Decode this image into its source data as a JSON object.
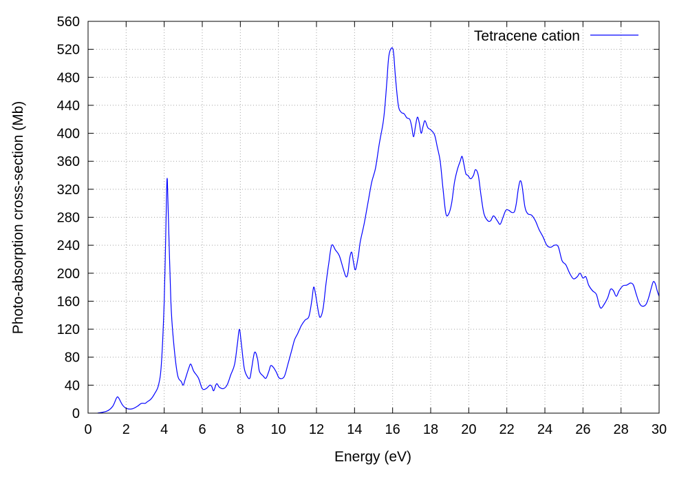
{
  "chart_data": {
    "type": "line",
    "xlabel": "Energy (eV)",
    "ylabel": "Photo-absorption cross-section (Mb)",
    "xlim": [
      0,
      30
    ],
    "ylim": [
      0,
      560
    ],
    "x_ticks": [
      "0",
      "2",
      "4",
      "6",
      "8",
      "10",
      "12",
      "14",
      "16",
      "18",
      "20",
      "22",
      "24",
      "26",
      "28",
      "30"
    ],
    "y_ticks": [
      "0",
      "40",
      "80",
      "120",
      "160",
      "200",
      "240",
      "280",
      "320",
      "360",
      "400",
      "440",
      "480",
      "520",
      "560"
    ],
    "grid": true,
    "legend_position": "top-right",
    "series": [
      {
        "name": "Tetracene cation",
        "color": "#0000ff",
        "points": [
          [
            0.5,
            0
          ],
          [
            1.0,
            3
          ],
          [
            1.3,
            10
          ],
          [
            1.5,
            22
          ],
          [
            1.6,
            22
          ],
          [
            1.8,
            12
          ],
          [
            2.0,
            7
          ],
          [
            2.3,
            6
          ],
          [
            2.6,
            10
          ],
          [
            2.8,
            14
          ],
          [
            3.0,
            14
          ],
          [
            3.1,
            16
          ],
          [
            3.3,
            20
          ],
          [
            3.5,
            28
          ],
          [
            3.7,
            40
          ],
          [
            3.85,
            70
          ],
          [
            4.0,
            160
          ],
          [
            4.1,
            280
          ],
          [
            4.15,
            335
          ],
          [
            4.2,
            300
          ],
          [
            4.35,
            160
          ],
          [
            4.5,
            100
          ],
          [
            4.7,
            55
          ],
          [
            4.9,
            45
          ],
          [
            5.0,
            40
          ],
          [
            5.1,
            48
          ],
          [
            5.3,
            65
          ],
          [
            5.4,
            70
          ],
          [
            5.55,
            60
          ],
          [
            5.8,
            50
          ],
          [
            6.0,
            35
          ],
          [
            6.2,
            35
          ],
          [
            6.4,
            40
          ],
          [
            6.5,
            38
          ],
          [
            6.6,
            32
          ],
          [
            6.75,
            42
          ],
          [
            6.9,
            37
          ],
          [
            7.1,
            35
          ],
          [
            7.3,
            40
          ],
          [
            7.5,
            55
          ],
          [
            7.7,
            70
          ],
          [
            7.85,
            100
          ],
          [
            7.95,
            120
          ],
          [
            8.05,
            100
          ],
          [
            8.2,
            65
          ],
          [
            8.35,
            53
          ],
          [
            8.5,
            50
          ],
          [
            8.6,
            65
          ],
          [
            8.75,
            87
          ],
          [
            8.9,
            78
          ],
          [
            9.0,
            60
          ],
          [
            9.2,
            53
          ],
          [
            9.35,
            50
          ],
          [
            9.5,
            60
          ],
          [
            9.6,
            68
          ],
          [
            9.75,
            65
          ],
          [
            9.9,
            58
          ],
          [
            10.05,
            50
          ],
          [
            10.3,
            52
          ],
          [
            10.5,
            70
          ],
          [
            10.7,
            90
          ],
          [
            10.85,
            105
          ],
          [
            11.0,
            113
          ],
          [
            11.2,
            125
          ],
          [
            11.4,
            133
          ],
          [
            11.6,
            138
          ],
          [
            11.75,
            160
          ],
          [
            11.85,
            180
          ],
          [
            11.95,
            170
          ],
          [
            12.1,
            145
          ],
          [
            12.2,
            137
          ],
          [
            12.35,
            150
          ],
          [
            12.5,
            185
          ],
          [
            12.65,
            215
          ],
          [
            12.8,
            240
          ],
          [
            13.0,
            233
          ],
          [
            13.2,
            225
          ],
          [
            13.4,
            207
          ],
          [
            13.55,
            195
          ],
          [
            13.65,
            200
          ],
          [
            13.75,
            222
          ],
          [
            13.85,
            230
          ],
          [
            13.95,
            215
          ],
          [
            14.05,
            205
          ],
          [
            14.2,
            225
          ],
          [
            14.3,
            245
          ],
          [
            14.5,
            270
          ],
          [
            14.7,
            300
          ],
          [
            14.9,
            330
          ],
          [
            15.1,
            350
          ],
          [
            15.3,
            385
          ],
          [
            15.5,
            415
          ],
          [
            15.6,
            440
          ],
          [
            15.7,
            475
          ],
          [
            15.8,
            510
          ],
          [
            15.95,
            522
          ],
          [
            16.05,
            515
          ],
          [
            16.15,
            480
          ],
          [
            16.3,
            440
          ],
          [
            16.45,
            430
          ],
          [
            16.6,
            428
          ],
          [
            16.75,
            422
          ],
          [
            16.9,
            420
          ],
          [
            17.0,
            410
          ],
          [
            17.1,
            395
          ],
          [
            17.2,
            410
          ],
          [
            17.3,
            423
          ],
          [
            17.4,
            415
          ],
          [
            17.5,
            400
          ],
          [
            17.6,
            410
          ],
          [
            17.7,
            418
          ],
          [
            17.85,
            408
          ],
          [
            18.0,
            405
          ],
          [
            18.2,
            398
          ],
          [
            18.35,
            380
          ],
          [
            18.5,
            360
          ],
          [
            18.65,
            320
          ],
          [
            18.8,
            285
          ],
          [
            18.95,
            285
          ],
          [
            19.1,
            300
          ],
          [
            19.25,
            330
          ],
          [
            19.4,
            348
          ],
          [
            19.55,
            360
          ],
          [
            19.65,
            367
          ],
          [
            19.75,
            355
          ],
          [
            19.85,
            342
          ],
          [
            19.95,
            340
          ],
          [
            20.1,
            335
          ],
          [
            20.25,
            340
          ],
          [
            20.35,
            348
          ],
          [
            20.5,
            340
          ],
          [
            20.65,
            310
          ],
          [
            20.8,
            285
          ],
          [
            21.0,
            275
          ],
          [
            21.15,
            275
          ],
          [
            21.3,
            282
          ],
          [
            21.5,
            275
          ],
          [
            21.65,
            270
          ],
          [
            21.8,
            280
          ],
          [
            21.95,
            290
          ],
          [
            22.1,
            290
          ],
          [
            22.25,
            287
          ],
          [
            22.4,
            288
          ],
          [
            22.5,
            300
          ],
          [
            22.6,
            320
          ],
          [
            22.7,
            332
          ],
          [
            22.8,
            325
          ],
          [
            22.95,
            295
          ],
          [
            23.1,
            285
          ],
          [
            23.3,
            283
          ],
          [
            23.5,
            275
          ],
          [
            23.7,
            262
          ],
          [
            23.9,
            252
          ],
          [
            24.1,
            240
          ],
          [
            24.3,
            237
          ],
          [
            24.5,
            240
          ],
          [
            24.7,
            238
          ],
          [
            24.9,
            218
          ],
          [
            25.1,
            212
          ],
          [
            25.3,
            200
          ],
          [
            25.5,
            192
          ],
          [
            25.7,
            195
          ],
          [
            25.85,
            200
          ],
          [
            26.0,
            193
          ],
          [
            26.15,
            195
          ],
          [
            26.3,
            183
          ],
          [
            26.5,
            175
          ],
          [
            26.7,
            170
          ],
          [
            26.85,
            155
          ],
          [
            26.95,
            150
          ],
          [
            27.1,
            155
          ],
          [
            27.3,
            165
          ],
          [
            27.45,
            177
          ],
          [
            27.6,
            175
          ],
          [
            27.75,
            167
          ],
          [
            27.9,
            175
          ],
          [
            28.1,
            182
          ],
          [
            28.3,
            183
          ],
          [
            28.5,
            186
          ],
          [
            28.65,
            183
          ],
          [
            28.8,
            170
          ],
          [
            28.95,
            158
          ],
          [
            29.1,
            153
          ],
          [
            29.3,
            155
          ],
          [
            29.45,
            165
          ],
          [
            29.6,
            180
          ],
          [
            29.7,
            188
          ],
          [
            29.8,
            185
          ],
          [
            29.9,
            175
          ],
          [
            30.0,
            167
          ]
        ]
      }
    ]
  }
}
